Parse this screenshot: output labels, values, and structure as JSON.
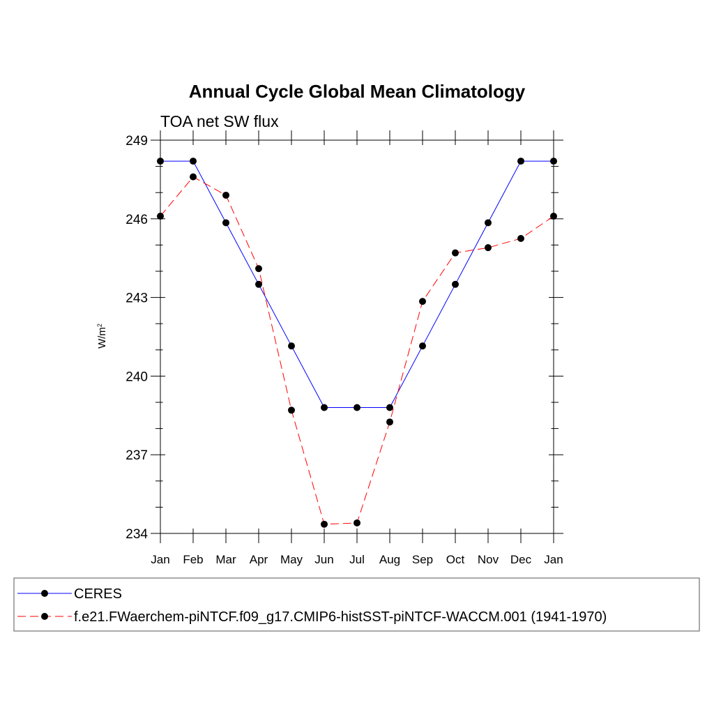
{
  "chart_data": {
    "type": "line",
    "title": "Annual Cycle Global Mean Climatology",
    "subtitle": "TOA net SW flux",
    "ylabel_base": "W/m",
    "ylabel_sup": "2",
    "xlabel": "",
    "categories": [
      "Jan",
      "Feb",
      "Mar",
      "Apr",
      "May",
      "Jun",
      "Jul",
      "Aug",
      "Sep",
      "Oct",
      "Nov",
      "Dec",
      "Jan"
    ],
    "ylim": [
      234,
      249
    ],
    "yticks": [
      "234",
      "237",
      "240",
      "243",
      "246",
      "249"
    ],
    "y_minor_step": 1,
    "grid": false,
    "legend_position": "bottom",
    "series": [
      {
        "name": "CERES",
        "color": "#0000ff",
        "dash": "solid",
        "values": [
          248.2,
          248.2,
          245.85,
          243.5,
          241.15,
          238.8,
          238.8,
          238.8,
          241.15,
          243.5,
          245.85,
          248.2,
          248.2
        ]
      },
      {
        "name": "f.e21.FWaerchem-piNTCF.f09_g17.CMIP6-histSST-piNTCF-WACCM.001 (1941-1970)",
        "color": "#ff0000",
        "dash": "dashed",
        "values": [
          246.1,
          247.6,
          246.9,
          244.1,
          238.7,
          234.35,
          234.4,
          238.25,
          242.85,
          244.7,
          244.9,
          245.25,
          246.1
        ]
      }
    ]
  }
}
